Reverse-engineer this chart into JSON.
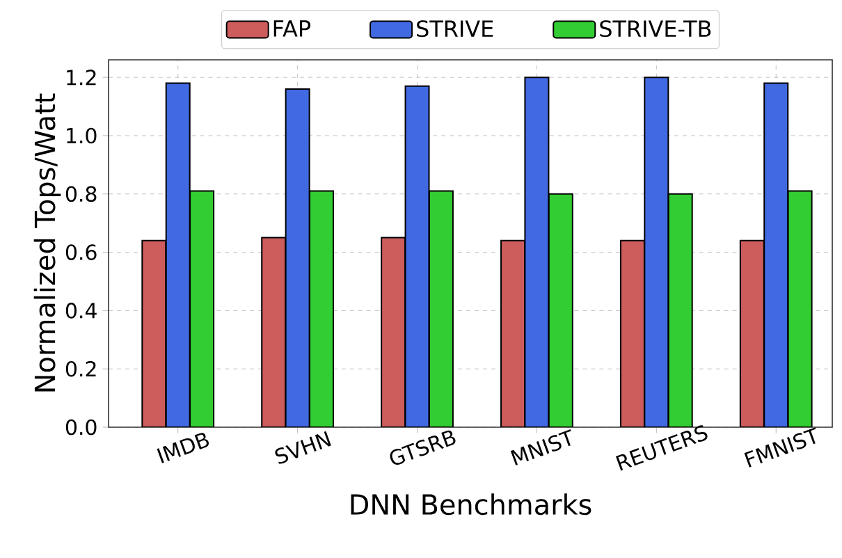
{
  "chart_data": {
    "type": "bar",
    "xlabel": "DNN Benchmarks",
    "ylabel": "Normalized Tops/Watt",
    "categories": [
      "IMDB",
      "SVHN",
      "GTSRB",
      "MNIST",
      "REUTERS",
      "FMNIST"
    ],
    "series": [
      {
        "name": "FAP",
        "color": "#cd5c5c",
        "values": [
          0.64,
          0.65,
          0.65,
          0.64,
          0.64,
          0.64
        ]
      },
      {
        "name": "STRIVE",
        "color": "#4169e1",
        "values": [
          1.18,
          1.16,
          1.17,
          1.2,
          1.2,
          1.18
        ]
      },
      {
        "name": "STRIVE-TB",
        "color": "#32cd32",
        "values": [
          0.81,
          0.81,
          0.81,
          0.8,
          0.8,
          0.81
        ]
      }
    ],
    "ylim": [
      0,
      1.26
    ],
    "yticks": [
      {
        "value": 0,
        "label": "0.0"
      },
      {
        "value": 0.2,
        "label": "0.2"
      },
      {
        "value": 0.4,
        "label": "0.4"
      },
      {
        "value": 0.6,
        "label": "0.6"
      },
      {
        "value": 0.8,
        "label": "0.8"
      },
      {
        "value": 1.0,
        "label": "1.0"
      },
      {
        "value": 1.2,
        "label": "1.2"
      }
    ],
    "grid": true,
    "legend": "top"
  }
}
